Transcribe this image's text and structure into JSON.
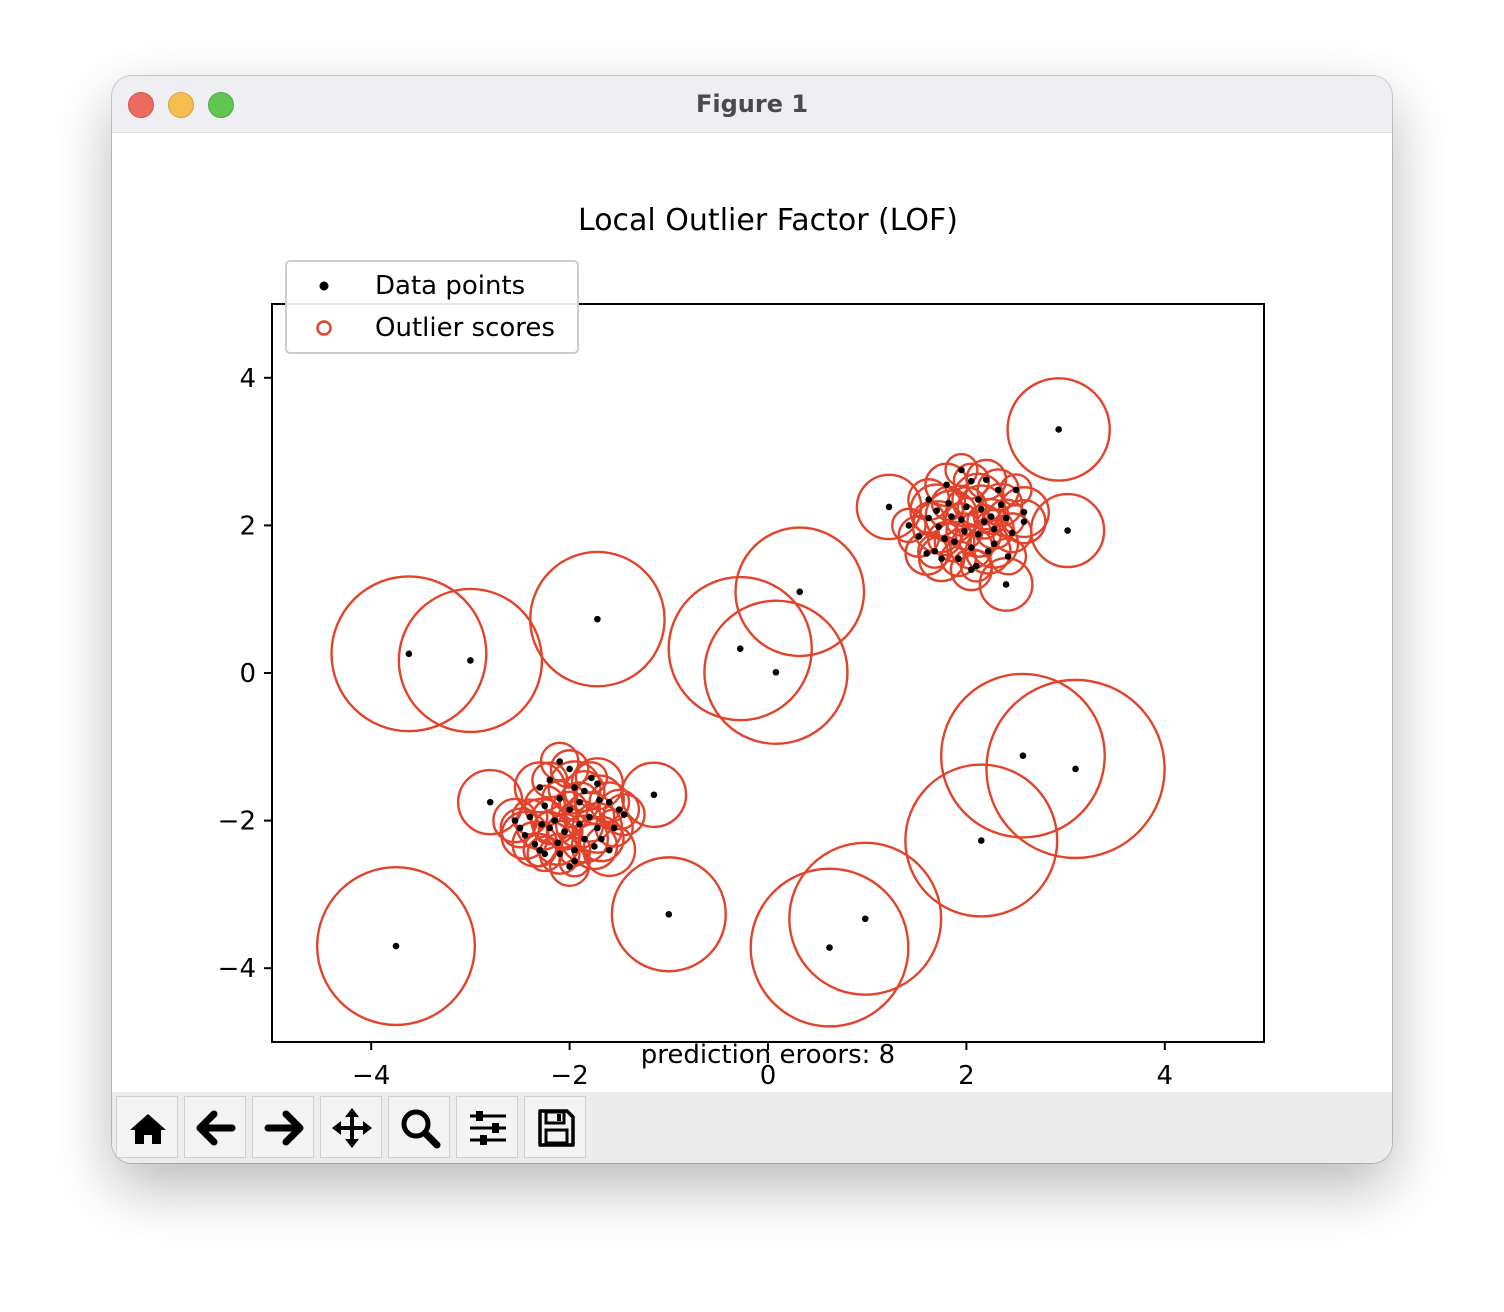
{
  "window": {
    "title": "Figure 1"
  },
  "toolbar": {
    "buttons": [
      {
        "name": "home-button",
        "icon": "home-icon"
      },
      {
        "name": "back-button",
        "icon": "arrow-left-icon"
      },
      {
        "name": "forward-button",
        "icon": "arrow-right-icon"
      },
      {
        "name": "pan-button",
        "icon": "move-icon"
      },
      {
        "name": "zoom-button",
        "icon": "magnifier-icon"
      },
      {
        "name": "configure-subplots-button",
        "icon": "sliders-icon"
      },
      {
        "name": "save-button",
        "icon": "floppy-disk-icon"
      }
    ]
  },
  "chart_data": {
    "type": "scatter",
    "title": "Local Outlier Factor (LOF)",
    "xlabel": "prediction eroors: 8",
    "ylabel": "",
    "xlim": [
      -5,
      5
    ],
    "ylim": [
      -5,
      5
    ],
    "xticks": [
      -4,
      -2,
      0,
      2,
      4
    ],
    "yticks": [
      -4,
      -2,
      0,
      2,
      4
    ],
    "tick_labels_x": [
      "−4",
      "−2",
      "0",
      "2",
      "4"
    ],
    "tick_labels_y": [
      "−4",
      "−2",
      "0",
      "2",
      "4"
    ],
    "grid": false,
    "legend": {
      "position": "upper left",
      "entries": [
        "Data points",
        "Outlier scores"
      ]
    },
    "colors": {
      "points": "#000000",
      "circles": "#e2432a"
    },
    "series": [
      {
        "name": "Data points",
        "marker": "filled-dot",
        "clusters": [
          {
            "center": [
              2.05,
              2.05
            ],
            "points": [
              [
                1.62,
                2.35
              ],
              [
                1.8,
                2.55
              ],
              [
                1.95,
                2.75
              ],
              [
                2.05,
                2.6
              ],
              [
                2.2,
                2.62
              ],
              [
                2.32,
                2.48
              ],
              [
                2.5,
                2.48
              ],
              [
                2.58,
                2.18
              ],
              [
                2.58,
                2.05
              ],
              [
                2.46,
                1.9
              ],
              [
                2.42,
                1.58
              ],
              [
                2.28,
                1.75
              ],
              [
                2.22,
                1.65
              ],
              [
                2.1,
                1.45
              ],
              [
                2.05,
                1.4
              ],
              [
                1.92,
                1.55
              ],
              [
                1.75,
                1.55
              ],
              [
                1.68,
                1.65
              ],
              [
                1.6,
                1.62
              ],
              [
                1.52,
                1.85
              ],
              [
                1.42,
                2.0
              ],
              [
                1.62,
                2.1
              ],
              [
                1.72,
                1.98
              ],
              [
                1.85,
                2.12
              ],
              [
                1.95,
                2.08
              ],
              [
                2.0,
                2.25
              ],
              [
                2.12,
                2.35
              ],
              [
                2.18,
                2.05
              ],
              [
                2.28,
                1.95
              ],
              [
                2.35,
                2.28
              ],
              [
                2.12,
                1.88
              ],
              [
                1.98,
                1.92
              ],
              [
                1.82,
                2.3
              ],
              [
                1.7,
                2.2
              ],
              [
                1.88,
                1.78
              ],
              [
                2.25,
                2.12
              ],
              [
                2.05,
                1.7
              ],
              [
                2.4,
                2.1
              ],
              [
                1.78,
                1.82
              ],
              [
                2.15,
                2.22
              ]
            ]
          },
          {
            "center": [
              -2.0,
              -2.0
            ],
            "points": [
              [
                -2.1,
                -1.2
              ],
              [
                -2.0,
                -1.3
              ],
              [
                -1.78,
                -1.42
              ],
              [
                -1.72,
                -1.5
              ],
              [
                -2.2,
                -1.45
              ],
              [
                -2.3,
                -1.55
              ],
              [
                -2.25,
                -1.8
              ],
              [
                -2.4,
                -1.95
              ],
              [
                -2.55,
                -2.0
              ],
              [
                -2.5,
                -2.1
              ],
              [
                -2.45,
                -2.2
              ],
              [
                -2.35,
                -2.32
              ],
              [
                -2.3,
                -2.4
              ],
              [
                -2.25,
                -2.45
              ],
              [
                -2.1,
                -2.45
              ],
              [
                -1.95,
                -2.4
              ],
              [
                -1.95,
                -2.55
              ],
              [
                -2.0,
                -2.62
              ],
              [
                -1.75,
                -2.35
              ],
              [
                -1.68,
                -2.25
              ],
              [
                -1.6,
                -2.4
              ],
              [
                -1.55,
                -2.1
              ],
              [
                -1.5,
                -1.85
              ],
              [
                -1.45,
                -1.92
              ],
              [
                -1.6,
                -1.75
              ],
              [
                -1.7,
                -1.72
              ],
              [
                -1.85,
                -1.6
              ],
              [
                -1.9,
                -1.75
              ],
              [
                -2.0,
                -1.85
              ],
              [
                -2.1,
                -1.7
              ],
              [
                -2.15,
                -2.0
              ],
              [
                -2.2,
                -2.1
              ],
              [
                -2.05,
                -2.15
              ],
              [
                -1.9,
                -2.05
              ],
              [
                -1.8,
                -1.95
              ],
              [
                -1.95,
                -1.55
              ],
              [
                -2.28,
                -2.05
              ],
              [
                -1.72,
                -2.1
              ],
              [
                -1.85,
                -2.25
              ],
              [
                -2.12,
                -2.3
              ]
            ]
          }
        ],
        "isolated_points": [
          [
            2.93,
            3.3
          ],
          [
            3.02,
            1.93
          ],
          [
            1.22,
            2.25
          ],
          [
            2.4,
            1.2
          ],
          [
            0.32,
            1.1
          ],
          [
            -1.72,
            0.73
          ],
          [
            -0.28,
            0.33
          ],
          [
            0.08,
            0.01
          ],
          [
            -3.62,
            0.26
          ],
          [
            -3.0,
            0.17
          ],
          [
            -2.8,
            -1.75
          ],
          [
            -1.15,
            -1.65
          ],
          [
            2.57,
            -1.12
          ],
          [
            3.1,
            -1.3
          ],
          [
            2.15,
            -2.27
          ],
          [
            -1.0,
            -3.27
          ],
          [
            -3.75,
            -3.7
          ],
          [
            0.62,
            -3.72
          ],
          [
            0.98,
            -3.33
          ]
        ]
      },
      {
        "name": "Outlier scores",
        "marker": "hollow-circle",
        "note": "circle radius proportional to outlier score",
        "scores": [
          {
            "point": [
              2.93,
              3.3
            ],
            "score": 0.35
          },
          {
            "point": [
              3.02,
              1.93
            ],
            "score": 0.25
          },
          {
            "point": [
              1.22,
              2.25
            ],
            "score": 0.22
          },
          {
            "point": [
              2.4,
              1.2
            ],
            "score": 0.18
          },
          {
            "point": [
              0.32,
              1.1
            ],
            "score": 0.44
          },
          {
            "point": [
              -1.72,
              0.73
            ],
            "score": 0.46
          },
          {
            "point": [
              -0.28,
              0.33
            ],
            "score": 0.49
          },
          {
            "point": [
              0.08,
              0.01
            ],
            "score": 0.49
          },
          {
            "point": [
              -3.62,
              0.26
            ],
            "score": 0.53
          },
          {
            "point": [
              -3.0,
              0.17
            ],
            "score": 0.49
          },
          {
            "point": [
              -2.8,
              -1.75
            ],
            "score": 0.22
          },
          {
            "point": [
              -1.15,
              -1.65
            ],
            "score": 0.22
          },
          {
            "point": [
              2.57,
              -1.12
            ],
            "score": 0.56
          },
          {
            "point": [
              3.1,
              -1.3
            ],
            "score": 0.61
          },
          {
            "point": [
              2.15,
              -2.27
            ],
            "score": 0.52
          },
          {
            "point": [
              -1.0,
              -3.27
            ],
            "score": 0.39
          },
          {
            "point": [
              -3.75,
              -3.7
            ],
            "score": 0.54
          },
          {
            "point": [
              0.62,
              -3.72
            ],
            "score": 0.54
          },
          {
            "point": [
              0.98,
              -3.33
            ],
            "score": 0.52
          }
        ],
        "cluster_point_score_range": [
          0.1,
          0.18
        ]
      }
    ]
  }
}
